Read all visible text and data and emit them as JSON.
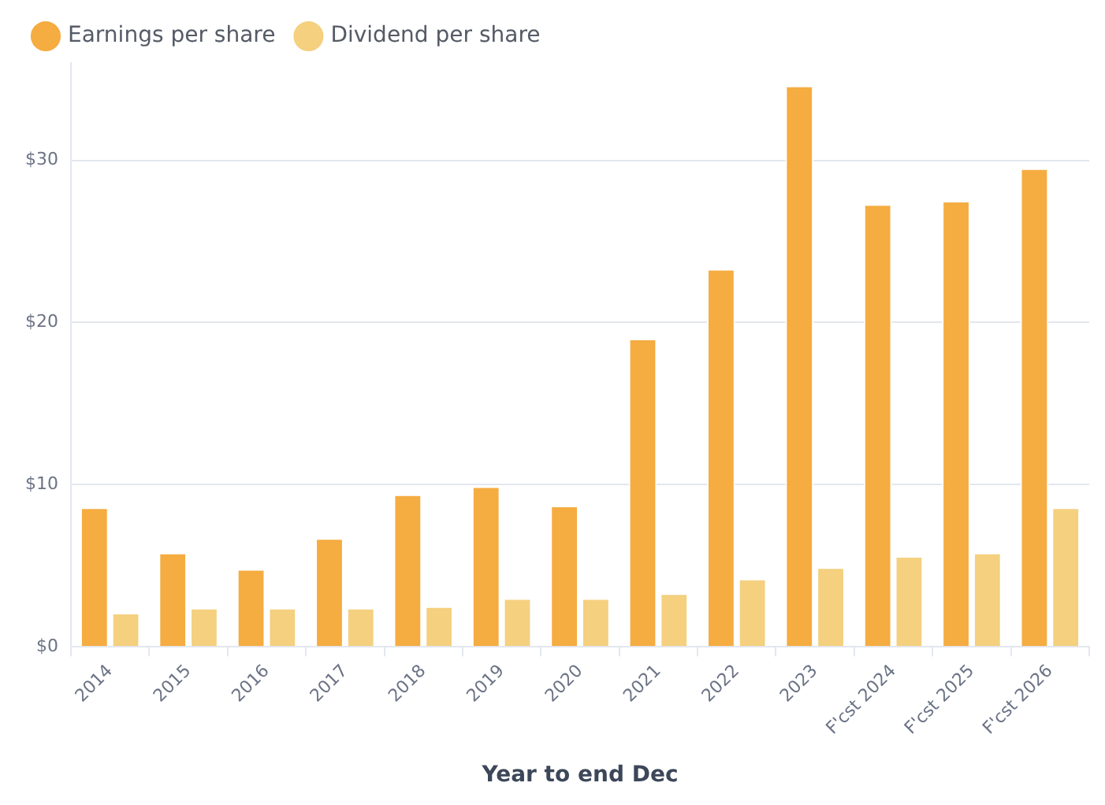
{
  "chart_data": {
    "type": "bar",
    "xlabel": "Year to end Dec",
    "categories": [
      "2014",
      "2015",
      "2016",
      "2017",
      "2018",
      "2019",
      "2020",
      "2021",
      "2022",
      "2023",
      "F'cst 2024",
      "F'cst 2025",
      "F'cst 2026"
    ],
    "series": [
      {
        "name": "Earnings per share",
        "color": "#f5ac40",
        "values": [
          8.6,
          5.8,
          4.8,
          6.7,
          9.4,
          9.9,
          8.7,
          19.0,
          23.3,
          34.6,
          27.3,
          27.5,
          29.5
        ]
      },
      {
        "name": "Dividend per share",
        "color": "#f4d07f",
        "values": [
          2.1,
          2.4,
          2.4,
          2.4,
          2.5,
          3.0,
          3.0,
          3.3,
          4.2,
          4.9,
          5.6,
          5.8,
          8.6
        ]
      }
    ],
    "ylim": [
      0,
      36
    ],
    "yticks": [
      {
        "value": 0,
        "label": "$0"
      },
      {
        "value": 10,
        "label": "$10"
      },
      {
        "value": 20,
        "label": "$20"
      },
      {
        "value": 30,
        "label": "$30"
      }
    ],
    "grid": "y",
    "legend": "top left"
  }
}
